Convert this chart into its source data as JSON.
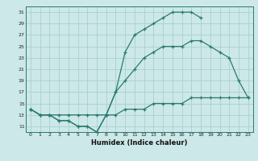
{
  "xlabel": "Humidex (Indice chaleur)",
  "line_color": "#2a7b6e",
  "bg_color": "#cce8e8",
  "grid_color": "#aacfcf",
  "marker": "+",
  "line1_x": [
    0,
    1,
    2,
    3,
    4,
    5,
    6,
    7,
    8,
    9,
    10,
    11,
    12,
    13,
    14,
    15,
    16,
    17,
    18
  ],
  "line1_y": [
    14,
    13,
    13,
    12,
    12,
    11,
    11,
    10,
    13,
    17,
    24,
    27,
    28,
    29,
    30,
    31,
    31,
    31,
    30
  ],
  "line2_x": [
    0,
    1,
    2,
    3,
    4,
    5,
    6,
    7,
    8,
    9,
    10,
    11,
    12,
    13,
    14,
    15,
    16,
    17,
    18,
    19,
    20,
    21,
    22,
    23
  ],
  "line2_y": [
    14,
    13,
    13,
    12,
    12,
    11,
    11,
    10,
    13,
    17,
    19,
    21,
    23,
    24,
    25,
    25,
    25,
    26,
    26,
    25,
    24,
    23,
    19,
    16
  ],
  "line3_x": [
    0,
    1,
    2,
    3,
    4,
    5,
    6,
    7,
    8,
    9,
    10,
    11,
    12,
    13,
    14,
    15,
    16,
    17,
    18,
    19,
    20,
    21,
    22,
    23
  ],
  "line3_y": [
    14,
    13,
    13,
    13,
    13,
    13,
    13,
    13,
    13,
    13,
    14,
    14,
    14,
    15,
    15,
    15,
    15,
    16,
    16,
    16,
    16,
    16,
    16,
    16
  ],
  "ylim": [
    10,
    32
  ],
  "xlim": [
    -0.5,
    23.5
  ],
  "yticks": [
    11,
    13,
    15,
    17,
    19,
    21,
    23,
    25,
    27,
    29,
    31
  ],
  "xticks": [
    0,
    1,
    2,
    3,
    4,
    5,
    6,
    7,
    8,
    9,
    10,
    11,
    12,
    13,
    14,
    15,
    16,
    17,
    18,
    19,
    20,
    21,
    22,
    23
  ]
}
